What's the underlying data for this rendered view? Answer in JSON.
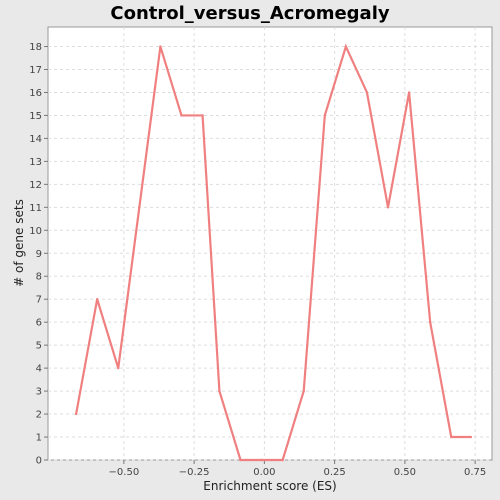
{
  "chart_data": {
    "type": "line",
    "title": "Control_versus_Acromegaly",
    "xlabel": "Enrichment score (ES)",
    "ylabel": "# of gene sets",
    "xlim": [
      -0.77,
      0.81
    ],
    "ylim": [
      0,
      18.85
    ],
    "xticks": [
      -0.5,
      -0.25,
      0.0,
      0.25,
      0.5,
      0.75
    ],
    "xtick_labels": [
      "−0.50",
      "−0.25",
      "0.00",
      "0.25",
      "0.50",
      "0.75"
    ],
    "yticks": [
      0,
      1,
      2,
      3,
      4,
      5,
      6,
      7,
      8,
      9,
      10,
      11,
      12,
      13,
      14,
      15,
      16,
      17,
      18
    ],
    "grid": true,
    "colors": {
      "line": "#f08080",
      "background": "#ffffff",
      "grid": "#dddddd",
      "page": "#e9e9e9"
    },
    "series": [
      {
        "x": [
          -0.67,
          -0.595,
          -0.52,
          -0.445,
          -0.37,
          -0.295,
          -0.22,
          -0.16,
          -0.085,
          -0.01,
          0.065,
          0.14,
          0.215,
          0.29,
          0.365,
          0.44,
          0.515,
          0.59,
          0.665,
          0.735
        ],
        "values": [
          2,
          7,
          4,
          11,
          18,
          15,
          15,
          3,
          0,
          0,
          0,
          3,
          15,
          18,
          16,
          11,
          16,
          6,
          1,
          1
        ]
      }
    ]
  }
}
